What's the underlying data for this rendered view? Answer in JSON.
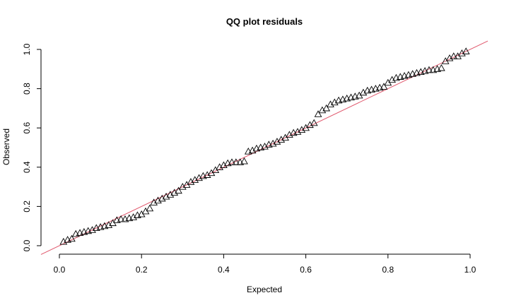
{
  "chart_data": {
    "type": "scatter",
    "title": "QQ plot residuals",
    "xlabel": "Expected",
    "ylabel": "Observed",
    "xlim": [
      0,
      1
    ],
    "ylim": [
      0,
      1
    ],
    "x_ticks": [
      "0.0",
      "0.2",
      "0.4",
      "0.6",
      "0.8",
      "1.0"
    ],
    "y_ticks": [
      "0.0",
      "0.2",
      "0.4",
      "0.6",
      "0.8",
      "1.0"
    ],
    "marker": "open-triangle",
    "reference_line": {
      "slope": 1,
      "intercept": 0,
      "color": "#e0566b"
    },
    "grid": false,
    "x": [
      0.01,
      0.02,
      0.03,
      0.04,
      0.05,
      0.06,
      0.07,
      0.08,
      0.09,
      0.1,
      0.11,
      0.12,
      0.13,
      0.14,
      0.15,
      0.16,
      0.17,
      0.18,
      0.19,
      0.2,
      0.21,
      0.22,
      0.23,
      0.24,
      0.25,
      0.26,
      0.27,
      0.28,
      0.29,
      0.3,
      0.31,
      0.32,
      0.33,
      0.34,
      0.35,
      0.36,
      0.37,
      0.38,
      0.39,
      0.4,
      0.41,
      0.42,
      0.43,
      0.44,
      0.45,
      0.46,
      0.47,
      0.48,
      0.49,
      0.5,
      0.51,
      0.52,
      0.53,
      0.54,
      0.55,
      0.56,
      0.57,
      0.58,
      0.59,
      0.6,
      0.61,
      0.62,
      0.63,
      0.64,
      0.65,
      0.66,
      0.67,
      0.68,
      0.69,
      0.7,
      0.71,
      0.72,
      0.73,
      0.74,
      0.75,
      0.76,
      0.77,
      0.78,
      0.79,
      0.8,
      0.81,
      0.82,
      0.83,
      0.84,
      0.85,
      0.86,
      0.87,
      0.88,
      0.89,
      0.9,
      0.91,
      0.92,
      0.93,
      0.94,
      0.95,
      0.96,
      0.97,
      0.98,
      0.99
    ],
    "y": [
      0.02,
      0.03,
      0.035,
      0.06,
      0.065,
      0.07,
      0.075,
      0.08,
      0.09,
      0.095,
      0.1,
      0.105,
      0.115,
      0.13,
      0.135,
      0.135,
      0.14,
      0.145,
      0.155,
      0.16,
      0.175,
      0.19,
      0.22,
      0.23,
      0.24,
      0.25,
      0.26,
      0.27,
      0.28,
      0.3,
      0.31,
      0.325,
      0.335,
      0.345,
      0.355,
      0.36,
      0.37,
      0.385,
      0.4,
      0.41,
      0.42,
      0.425,
      0.425,
      0.425,
      0.43,
      0.48,
      0.485,
      0.495,
      0.5,
      0.505,
      0.515,
      0.52,
      0.53,
      0.54,
      0.55,
      0.565,
      0.575,
      0.58,
      0.59,
      0.6,
      0.615,
      0.625,
      0.67,
      0.69,
      0.7,
      0.72,
      0.73,
      0.74,
      0.745,
      0.75,
      0.755,
      0.76,
      0.765,
      0.78,
      0.79,
      0.795,
      0.8,
      0.805,
      0.81,
      0.83,
      0.845,
      0.855,
      0.86,
      0.865,
      0.87,
      0.875,
      0.88,
      0.885,
      0.89,
      0.895,
      0.895,
      0.9,
      0.905,
      0.94,
      0.955,
      0.965,
      0.965,
      0.98,
      0.99
    ]
  }
}
